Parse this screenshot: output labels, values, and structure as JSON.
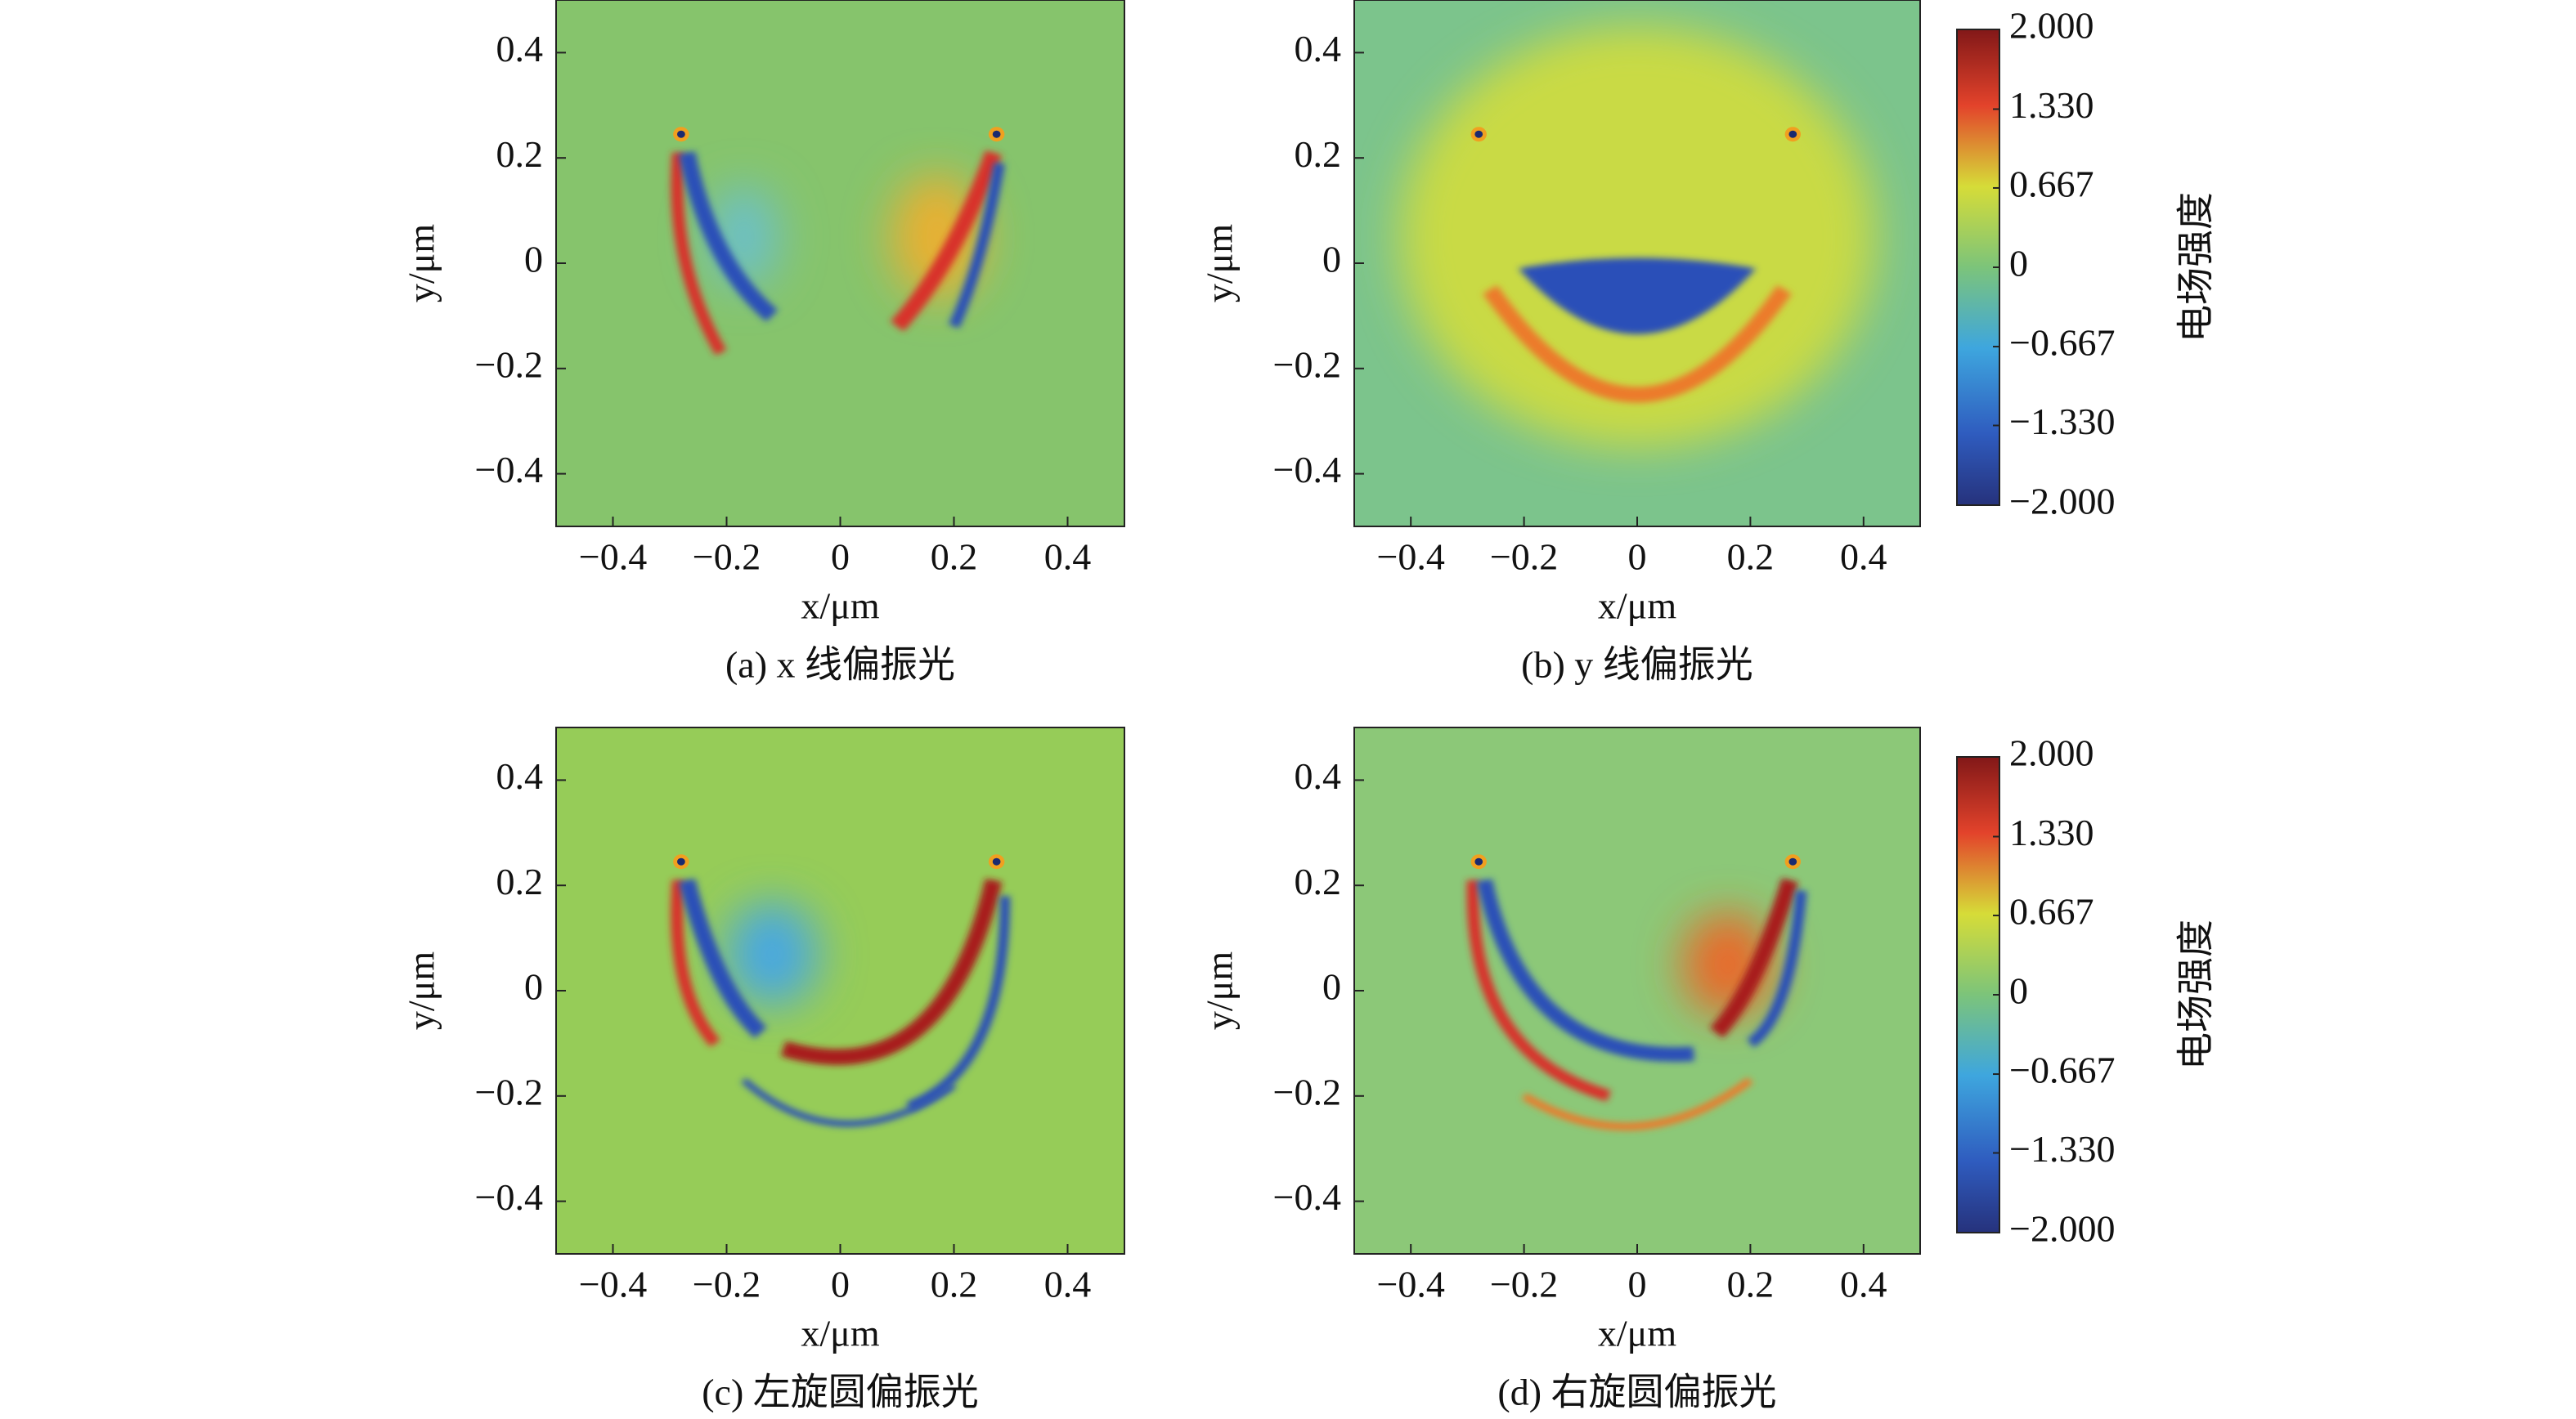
{
  "chart_data": [
    {
      "type": "heatmap",
      "caption": "(a) x 线偏振光",
      "xlabel": "x/μm",
      "ylabel": "y/μm",
      "xlim": [
        -0.5,
        0.5
      ],
      "ylim": [
        -0.5,
        0.5
      ],
      "xticks": [
        {
          "value": -0.4,
          "label": "−0.4"
        },
        {
          "value": -0.2,
          "label": "−0.2"
        },
        0,
        0.2,
        0.4
      ],
      "yticks": [
        {
          "value": -0.4,
          "label": "−0.4"
        },
        {
          "value": -0.2,
          "label": "−0.2"
        },
        0,
        0.2,
        0.4
      ]
    },
    {
      "type": "heatmap",
      "caption": "(b) y 线偏振光",
      "xlabel": "x/μm",
      "ylabel": "y/μm",
      "xlim": [
        -0.5,
        0.5
      ],
      "ylim": [
        -0.5,
        0.5
      ],
      "xticks": [
        {
          "value": -0.4,
          "label": "−0.4"
        },
        {
          "value": -0.2,
          "label": "−0.2"
        },
        0,
        0.2,
        0.4
      ],
      "yticks": [
        {
          "value": -0.4,
          "label": "−0.4"
        },
        {
          "value": -0.2,
          "label": "−0.2"
        },
        0,
        0.2,
        0.4
      ],
      "colorbar": {
        "label": "电场强度",
        "lim": [
          -2,
          2
        ],
        "ticks": [
          {
            "value": 2,
            "label": "2.000"
          },
          {
            "value": 1.33,
            "label": "1.330"
          },
          {
            "value": 0.667,
            "label": "0.667"
          },
          0,
          {
            "value": -0.667,
            "label": "−0.667"
          },
          {
            "value": -1.33,
            "label": "−1.330"
          },
          {
            "value": -2,
            "label": "−2.000"
          }
        ]
      }
    },
    {
      "type": "heatmap",
      "caption": "(c) 左旋圆偏振光",
      "xlabel": "x/μm",
      "ylabel": "y/μm",
      "xlim": [
        -0.5,
        0.5
      ],
      "ylim": [
        -0.5,
        0.5
      ],
      "xticks": [
        {
          "value": -0.4,
          "label": "−0.4"
        },
        {
          "value": -0.2,
          "label": "−0.2"
        },
        0,
        0.2,
        0.4
      ],
      "yticks": [
        {
          "value": -0.4,
          "label": "−0.4"
        },
        {
          "value": -0.2,
          "label": "−0.2"
        },
        0,
        0.2,
        0.4
      ]
    },
    {
      "type": "heatmap",
      "caption": "(d) 右旋圆偏振光",
      "xlabel": "x/μm",
      "ylabel": "y/μm",
      "xlim": [
        -0.5,
        0.5
      ],
      "ylim": [
        -0.5,
        0.5
      ],
      "xticks": [
        {
          "value": -0.4,
          "label": "−0.4"
        },
        {
          "value": -0.2,
          "label": "−0.2"
        },
        0,
        0.2,
        0.4
      ],
      "yticks": [
        {
          "value": -0.4,
          "label": "−0.4"
        },
        {
          "value": -0.2,
          "label": "−0.2"
        },
        0,
        0.2,
        0.4
      ],
      "colorbar": {
        "label": "电场强度",
        "lim": [
          -2,
          2
        ],
        "ticks": [
          {
            "value": 2,
            "label": "2.000"
          },
          {
            "value": 1.33,
            "label": "1.330"
          },
          {
            "value": 0.667,
            "label": "0.667"
          },
          0,
          {
            "value": -0.667,
            "label": "−0.667"
          },
          {
            "value": -1.33,
            "label": "−1.330"
          },
          {
            "value": -2,
            "label": "−2.000"
          }
        ]
      }
    }
  ]
}
